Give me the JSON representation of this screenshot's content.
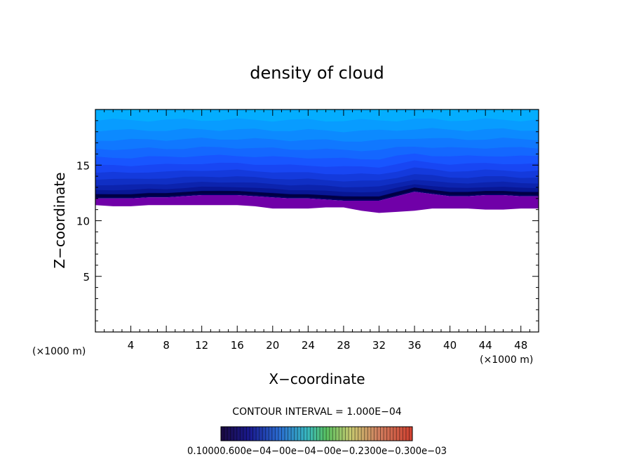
{
  "chart_data": {
    "type": "heatmap",
    "title": "density of cloud",
    "xlabel": "X−coordinate",
    "ylabel": "Z−coordinate",
    "x_unit_left": "(×1000 m)",
    "x_unit_right": "(×1000 m)",
    "xlim": [
      0,
      50
    ],
    "ylim": [
      0,
      20
    ],
    "x_ticks": [
      4,
      8,
      12,
      16,
      20,
      24,
      28,
      32,
      36,
      40,
      44,
      48
    ],
    "y_ticks": [
      5,
      10,
      15
    ],
    "x_tick_labels": [
      "4",
      "8",
      "12",
      "16",
      "20",
      "24",
      "28",
      "32",
      "36",
      "40",
      "44",
      "48"
    ],
    "y_tick_labels": [
      "5",
      "10",
      "15"
    ],
    "contour_interval_label": "CONTOUR INTERVAL = 1.000E−04",
    "colorbar_labels": "0.10000.600e−04−00e−04−00e−0.2300e−0.300e−03",
    "field": {
      "x": [
        0,
        2,
        4,
        6,
        8,
        10,
        12,
        14,
        16,
        18,
        20,
        22,
        24,
        26,
        28,
        30,
        32,
        34,
        36,
        38,
        40,
        42,
        44,
        46,
        48,
        50
      ],
      "cloud_base_z": [
        11.4,
        11.3,
        11.3,
        11.4,
        11.4,
        11.4,
        11.4,
        11.4,
        11.4,
        11.3,
        11.1,
        11.1,
        11.1,
        11.2,
        11.2,
        10.9,
        10.7,
        10.8,
        10.9,
        11.1,
        11.1,
        11.1,
        11.0,
        11.0,
        11.1,
        11.1
      ],
      "core_z": [
        12.0,
        12.0,
        12.0,
        12.1,
        12.1,
        12.2,
        12.3,
        12.3,
        12.3,
        12.2,
        12.1,
        12.0,
        12.0,
        11.9,
        11.8,
        11.8,
        11.8,
        12.2,
        12.6,
        12.4,
        12.2,
        12.2,
        12.3,
        12.3,
        12.2,
        12.2
      ],
      "top_z": 20
    },
    "colors": {
      "low": "#00bfff",
      "mid": "#1a4cff",
      "core": "#000066",
      "edge": "#7000a8"
    },
    "grid": false,
    "legend": "colorbar-bottom"
  }
}
